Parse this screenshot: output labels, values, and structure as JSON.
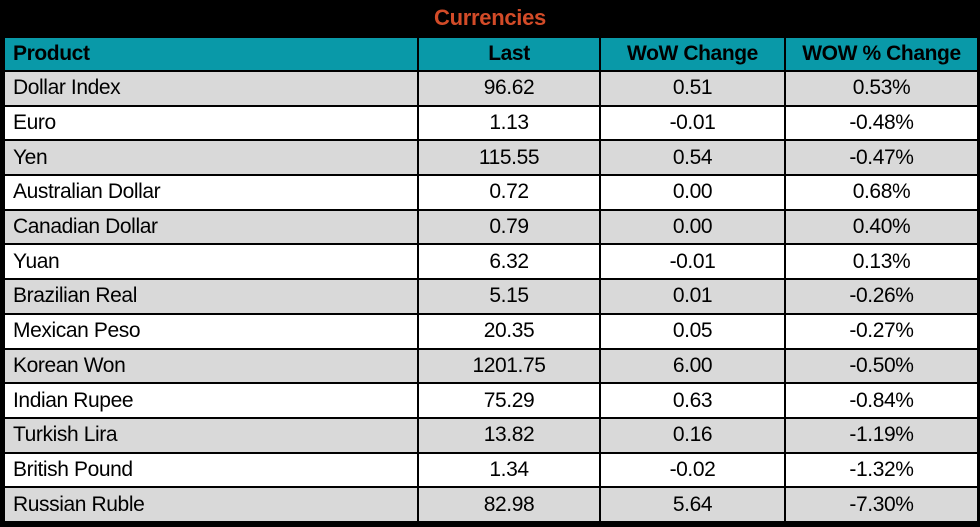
{
  "title": "Currencies",
  "colors": {
    "header_bg": "#0999A8",
    "title_color": "#D24B28",
    "row_alt_bg": "#D9D9D9",
    "row_bg": "#FFFFFF",
    "border": "#000000"
  },
  "chart_data": {
    "type": "table",
    "title": "Currencies",
    "columns": [
      "Product",
      "Last",
      "WoW Change",
      "WOW % Change"
    ],
    "rows": [
      [
        "Dollar Index",
        "96.62",
        "0.51",
        "0.53%"
      ],
      [
        "Euro",
        "1.13",
        "-0.01",
        "-0.48%"
      ],
      [
        "Yen",
        "115.55",
        "0.54",
        "-0.47%"
      ],
      [
        "Australian Dollar",
        "0.72",
        "0.00",
        "0.68%"
      ],
      [
        "Canadian Dollar",
        "0.79",
        "0.00",
        "0.40%"
      ],
      [
        "Yuan",
        "6.32",
        "-0.01",
        "0.13%"
      ],
      [
        "Brazilian Real",
        "5.15",
        "0.01",
        "-0.26%"
      ],
      [
        "Mexican Peso",
        "20.35",
        "0.05",
        "-0.27%"
      ],
      [
        "Korean Won",
        "1201.75",
        "6.00",
        "-0.50%"
      ],
      [
        "Indian Rupee",
        "75.29",
        "0.63",
        "-0.84%"
      ],
      [
        "Turkish Lira",
        "13.82",
        "0.16",
        "-1.19%"
      ],
      [
        "British Pound",
        "1.34",
        "-0.02",
        "-1.32%"
      ],
      [
        "Russian Ruble",
        "82.98",
        "5.64",
        "-7.30%"
      ]
    ]
  }
}
